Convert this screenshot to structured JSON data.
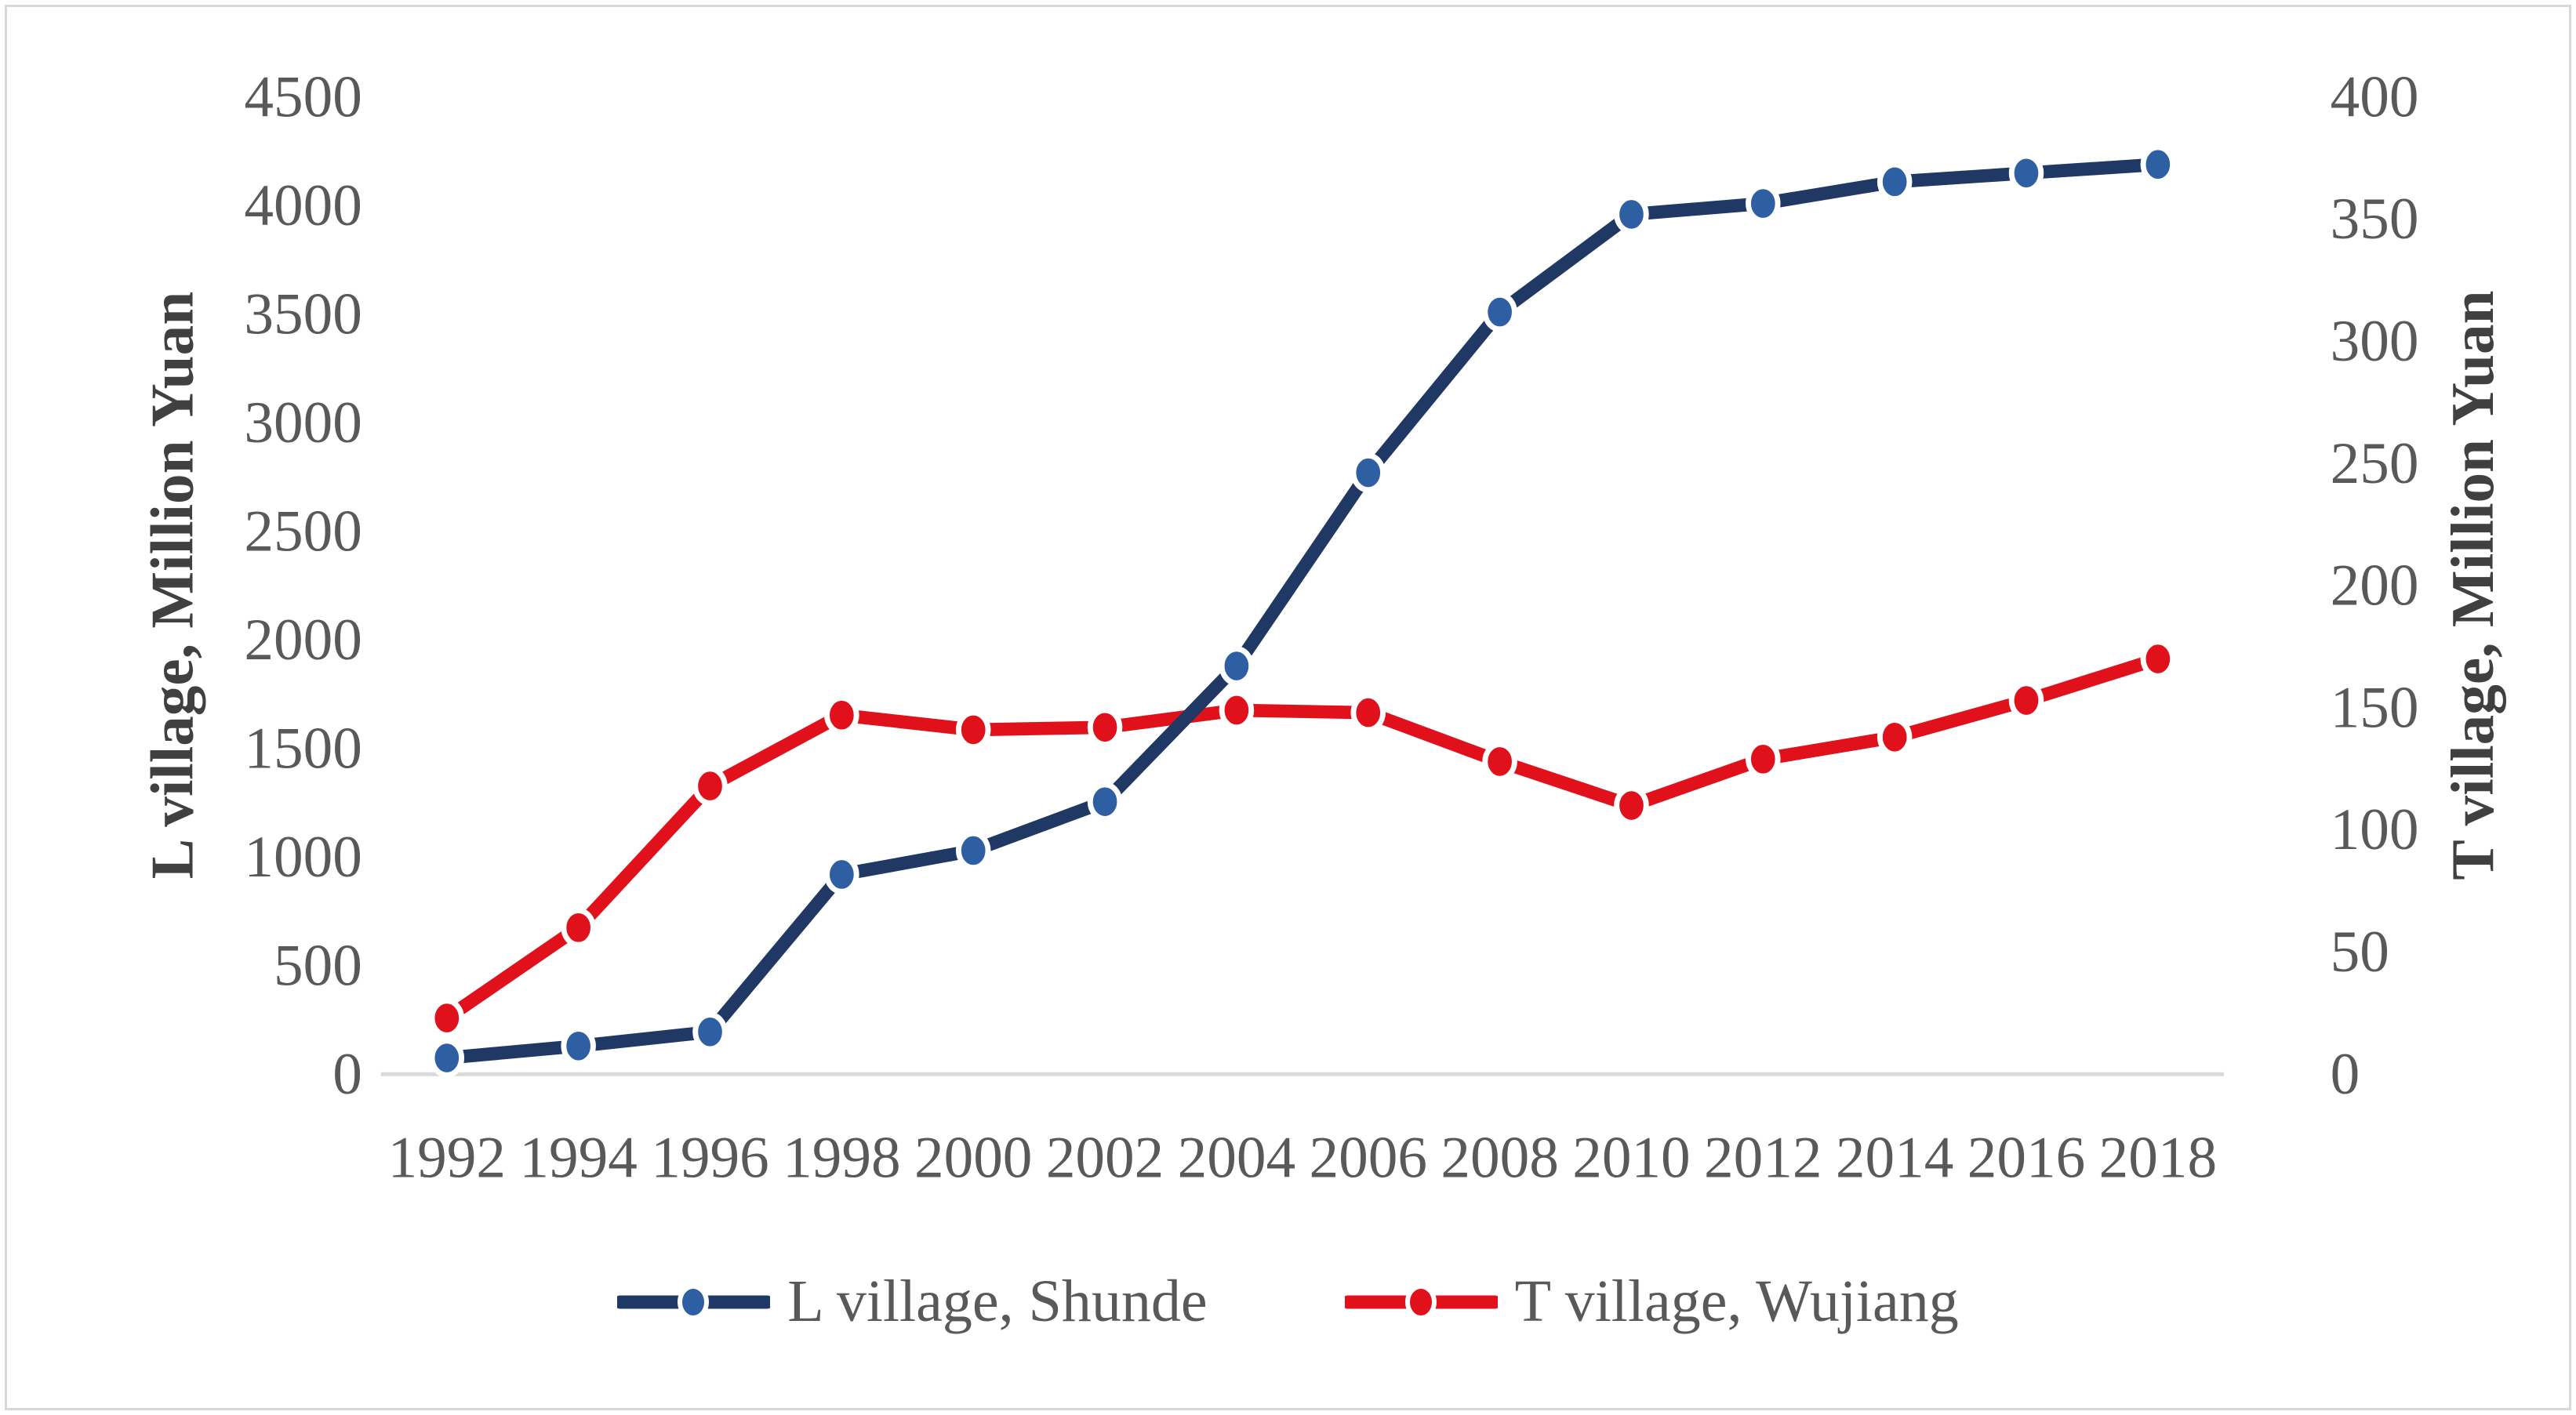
{
  "figure": {
    "background_color": "#ffffff",
    "border_color": "#d8d8d8",
    "tick_label_color": "#595959",
    "axis_title_color": "#404040",
    "axis_line_color": "#d9d9d9"
  },
  "chart_data": {
    "type": "line",
    "x": [
      1992,
      1994,
      1996,
      1998,
      2000,
      2002,
      2004,
      2006,
      2008,
      2010,
      2012,
      2014,
      2016,
      2018
    ],
    "series": [
      {
        "name": "T village, Wujiang",
        "axis": "right",
        "line_color": "#e0111b",
        "marker_color": "#e0111b",
        "values": [
          23,
          60,
          118,
          147,
          141,
          142,
          149,
          148,
          128,
          110,
          129,
          138,
          153,
          170
        ]
      },
      {
        "name": "L village, Shunde",
        "axis": "left",
        "line_color": "#1f3864",
        "marker_color": "#2e5fa3",
        "values": [
          75,
          130,
          195,
          920,
          1030,
          1255,
          1880,
          2770,
          3510,
          3960,
          4010,
          4110,
          4150,
          4190
        ]
      }
    ],
    "legend_order": [
      "L village, Shunde",
      "T village, Wujiang"
    ],
    "left_axis": {
      "title": "L village, Million Yuan",
      "min": 0,
      "max": 4500,
      "step": 500
    },
    "right_axis": {
      "title": "T village, Million Yuan",
      "min": 0,
      "max": 400,
      "step": 50
    },
    "grid": false,
    "legend_position": "bottom"
  }
}
